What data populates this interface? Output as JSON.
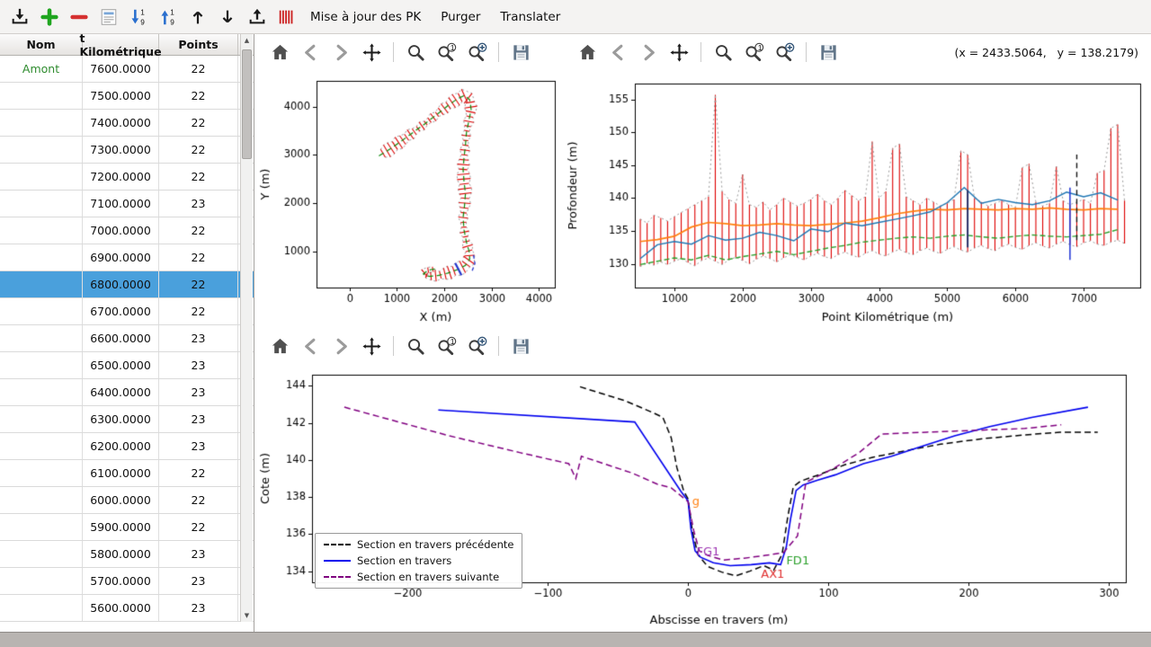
{
  "toolbar": {
    "buttons": [
      "import",
      "add",
      "remove",
      "edit",
      "sort-descending",
      "sort-ascending",
      "move-up",
      "move-down",
      "export",
      "pk-marks"
    ],
    "menus": [
      "Mise à jour des PK",
      "Purger",
      "Translater"
    ]
  },
  "table": {
    "columns": [
      "Nom",
      "t Kilométrique",
      "Points"
    ],
    "selected_index": 8,
    "rows": [
      {
        "nom": "Amont",
        "pk": "7600.0000",
        "points": "22"
      },
      {
        "nom": "",
        "pk": "7500.0000",
        "points": "22"
      },
      {
        "nom": "",
        "pk": "7400.0000",
        "points": "22"
      },
      {
        "nom": "",
        "pk": "7300.0000",
        "points": "22"
      },
      {
        "nom": "",
        "pk": "7200.0000",
        "points": "22"
      },
      {
        "nom": "",
        "pk": "7100.0000",
        "points": "23"
      },
      {
        "nom": "",
        "pk": "7000.0000",
        "points": "22"
      },
      {
        "nom": "",
        "pk": "6900.0000",
        "points": "22"
      },
      {
        "nom": "",
        "pk": "6800.0000",
        "points": "22"
      },
      {
        "nom": "",
        "pk": "6700.0000",
        "points": "22"
      },
      {
        "nom": "",
        "pk": "6600.0000",
        "points": "23"
      },
      {
        "nom": "",
        "pk": "6500.0000",
        "points": "23"
      },
      {
        "nom": "",
        "pk": "6400.0000",
        "points": "23"
      },
      {
        "nom": "",
        "pk": "6300.0000",
        "points": "23"
      },
      {
        "nom": "",
        "pk": "6200.0000",
        "points": "23"
      },
      {
        "nom": "",
        "pk": "6100.0000",
        "points": "22"
      },
      {
        "nom": "",
        "pk": "6000.0000",
        "points": "22"
      },
      {
        "nom": "",
        "pk": "5900.0000",
        "points": "22"
      },
      {
        "nom": "",
        "pk": "5800.0000",
        "points": "23"
      },
      {
        "nom": "",
        "pk": "5700.0000",
        "points": "23"
      },
      {
        "nom": "",
        "pk": "5600.0000",
        "points": "23"
      }
    ]
  },
  "plot_toolbar": {
    "icons": [
      "home",
      "back",
      "forward",
      "pan",
      "|",
      "zoom",
      "zoom-1",
      "zoom-plus",
      "|",
      "save"
    ]
  },
  "readout": "(x = 2433.5064,   y = 138.2179)",
  "colors": {
    "selection": "#4aa0dc",
    "section_red": "#dd0000",
    "highlight_blue": "#2233cc"
  },
  "chart_data": [
    {
      "id": "c-plan",
      "type": "line",
      "xlabel": "X (m)",
      "ylabel": "Y (m)",
      "xlim": [
        -700,
        4340
      ],
      "ylim": [
        260,
        4530
      ],
      "xticks": [
        0,
        1000,
        2000,
        3000,
        4000
      ],
      "yticks": [
        1000,
        2000,
        3000,
        4000
      ],
      "river": {
        "centerline": [
          [
            620,
            2980
          ],
          [
            850,
            3120
          ],
          [
            1100,
            3290
          ],
          [
            1350,
            3470
          ],
          [
            1600,
            3650
          ],
          [
            1850,
            3840
          ],
          [
            2080,
            4020
          ],
          [
            2280,
            4160
          ],
          [
            2430,
            4230
          ],
          [
            2540,
            4140
          ],
          [
            2570,
            3940
          ],
          [
            2520,
            3700
          ],
          [
            2470,
            3450
          ],
          [
            2450,
            3200
          ],
          [
            2420,
            2950
          ],
          [
            2400,
            2700
          ],
          [
            2420,
            2450
          ],
          [
            2450,
            2200
          ],
          [
            2430,
            1950
          ],
          [
            2400,
            1700
          ],
          [
            2420,
            1450
          ],
          [
            2470,
            1200
          ],
          [
            2530,
            1000
          ],
          [
            2540,
            850
          ],
          [
            2450,
            720
          ],
          [
            2280,
            630
          ],
          [
            2080,
            560
          ],
          [
            1870,
            510
          ],
          [
            1680,
            490
          ],
          [
            1560,
            540
          ],
          [
            1660,
            620
          ],
          [
            1830,
            650
          ]
        ],
        "section_spacing": 100,
        "highlight_index": 59,
        "colors": {
          "sections": "#dd0000",
          "centerline": "#0a8a0a",
          "envelope": "#999999",
          "highlight": "#2233cc"
        }
      },
      "series": [
        {
          "name": "selected-section-trace",
          "color": "#2233cc",
          "dash": [
            4,
            3
          ],
          "lw": 1.3,
          "points": [
            [
              2620,
              930
            ],
            [
              2650,
              760
            ],
            [
              2590,
              600
            ]
          ]
        }
      ]
    },
    {
      "id": "c-profile",
      "type": "line",
      "xlabel": "Point Kilométrique (m)",
      "ylabel": "Profondeur (m)",
      "xlim": [
        420,
        7830
      ],
      "ylim": [
        126.4,
        157.4
      ],
      "xticks": [
        1000,
        2000,
        3000,
        4000,
        5000,
        6000,
        7000
      ],
      "yticks": [
        130,
        135,
        140,
        145,
        150,
        155
      ],
      "bars": {
        "x0": 500,
        "step": 100,
        "color": "#dd0000",
        "envelope": "#999999",
        "top": [
          136.8,
          136.2,
          137.4,
          137.0,
          136.5,
          137.2,
          137.8,
          138.4,
          139.0,
          139.6,
          140.2,
          155.7,
          141.0,
          139.8,
          139.2,
          143.6,
          139.0,
          138.6,
          139.4,
          138.2,
          139.0,
          140.0,
          139.4,
          138.8,
          139.2,
          139.8,
          140.6,
          139.6,
          139.0,
          140.0,
          141.2,
          140.4,
          139.6,
          140.2,
          148.6,
          140.0,
          141.0,
          147.6,
          148.2,
          140.2,
          139.6,
          139.0,
          140.0,
          139.4,
          138.8,
          139.2,
          139.8,
          147.2,
          146.6,
          140.0,
          139.4,
          138.8,
          139.2,
          139.6,
          139.0,
          138.6,
          144.6,
          145.2,
          139.4,
          138.8,
          139.2,
          144.8,
          139.6,
          139.0,
          139.4,
          139.8,
          139.2,
          143.8,
          144.2,
          150.6,
          151.2,
          139.6
        ],
        "bottom": [
          129.6,
          130.1,
          129.8,
          130.3,
          129.9,
          130.4,
          130.8,
          130.2,
          129.7,
          130.5,
          130.9,
          130.4,
          129.9,
          130.6,
          131.0,
          130.5,
          130.0,
          130.7,
          131.2,
          130.8,
          130.3,
          130.9,
          131.4,
          131.0,
          130.6,
          131.2,
          131.6,
          131.1,
          130.8,
          131.4,
          131.8,
          131.3,
          131.0,
          131.6,
          132.0,
          131.5,
          131.2,
          131.8,
          132.2,
          131.7,
          131.4,
          132.0,
          132.4,
          131.9,
          131.6,
          132.2,
          132.6,
          132.1,
          131.8,
          132.4,
          132.8,
          132.3,
          132.0,
          132.6,
          133.0,
          132.5,
          132.2,
          132.8,
          133.2,
          132.7,
          132.4,
          133.0,
          133.4,
          132.9,
          132.6,
          133.2,
          133.5,
          133.0,
          132.8,
          133.3,
          133.6,
          133.1
        ]
      },
      "series": [
        {
          "name": "ligne-orange",
          "color": "#ff7f0e",
          "lw": 1.7,
          "x0": 500,
          "step": 250,
          "y": [
            133.4,
            133.7,
            134.2,
            135.6,
            136.3,
            136.1,
            135.8,
            135.9,
            136.1,
            135.9,
            135.8,
            136.0,
            136.2,
            136.5,
            137.0,
            137.6,
            138.0,
            138.3,
            138.2,
            138.4,
            138.3,
            138.2,
            138.4,
            138.3,
            138.5,
            138.3,
            138.2,
            138.4,
            138.3
          ]
        },
        {
          "name": "ligne-bleue",
          "color": "#1f77b4",
          "lw": 1.4,
          "x0": 500,
          "step": 250,
          "y": [
            130.8,
            132.9,
            133.4,
            133.0,
            134.3,
            133.6,
            133.9,
            134.8,
            134.3,
            133.5,
            135.3,
            134.9,
            136.2,
            135.8,
            136.3,
            136.8,
            137.3,
            137.9,
            139.3,
            141.6,
            139.2,
            139.8,
            139.3,
            139.0,
            139.6,
            140.9,
            140.2,
            140.8,
            139.7
          ]
        },
        {
          "name": "ligne-verte",
          "color": "#2ca02c",
          "lw": 1.4,
          "dash": [
            6,
            3
          ],
          "x0": 500,
          "step": 250,
          "y": [
            129.9,
            130.4,
            130.9,
            130.6,
            131.3,
            130.6,
            131.1,
            131.5,
            131.9,
            131.4,
            131.9,
            132.4,
            132.8,
            133.3,
            133.6,
            133.9,
            134.1,
            133.9,
            134.2,
            134.4,
            134.1,
            133.9,
            134.2,
            134.4,
            134.2,
            134.1,
            134.3,
            134.5,
            135.2
          ]
        }
      ],
      "vlines": [
        {
          "x": 5300,
          "y0": 132.5,
          "y1": 141.2,
          "color": "#27336b",
          "lw": 2
        },
        {
          "x": 6800,
          "y0": 130.6,
          "y1": 141.6,
          "color": "#2b3fd6",
          "lw": 1.6
        },
        {
          "x": 6900,
          "y0": 133.6,
          "y1": 146.6,
          "color": "#151515",
          "lw": 1.4,
          "dash": [
            6,
            4
          ]
        }
      ]
    },
    {
      "id": "c-cross",
      "type": "line",
      "xlabel": "Abscisse en travers (m)",
      "ylabel": "Cote (m)",
      "xlim": [
        -268,
        312
      ],
      "ylim": [
        133.4,
        144.6
      ],
      "xticks": [
        -200,
        -100,
        0,
        100,
        200,
        300
      ],
      "yticks": [
        134,
        136,
        138,
        140,
        142,
        144
      ],
      "series": [
        {
          "name": "Section en travers précédente",
          "color": "#000000",
          "dash": [
            7,
            4
          ],
          "lw": 1.5,
          "points": [
            [
              -77,
              143.95
            ],
            [
              -45,
              143.2
            ],
            [
              -25,
              142.55
            ],
            [
              -18,
              142.3
            ],
            [
              -12,
              141.2
            ],
            [
              -8,
              139.6
            ],
            [
              -3,
              138.3
            ],
            [
              0,
              137.9
            ],
            [
              3,
              136.2
            ],
            [
              7,
              134.9
            ],
            [
              14,
              134.25
            ],
            [
              24,
              133.95
            ],
            [
              34,
              133.75
            ],
            [
              44,
              134.0
            ],
            [
              54,
              134.3
            ],
            [
              61,
              134.05
            ],
            [
              67,
              134.9
            ],
            [
              71,
              136.9
            ],
            [
              75,
              138.55
            ],
            [
              80,
              138.85
            ],
            [
              95,
              139.25
            ],
            [
              112,
              139.75
            ],
            [
              132,
              140.15
            ],
            [
              155,
              140.5
            ],
            [
              180,
              140.85
            ],
            [
              210,
              141.15
            ],
            [
              240,
              141.35
            ],
            [
              265,
              141.5
            ],
            [
              292,
              141.5
            ]
          ]
        },
        {
          "name": "Section en travers",
          "color": "#0000ee",
          "lw": 1.6,
          "points": [
            [
              -178,
              142.7
            ],
            [
              -38,
              142.05
            ],
            [
              -5,
              138.3
            ],
            [
              0,
              137.8
            ],
            [
              2,
              136.3
            ],
            [
              5,
              135.1
            ],
            [
              9,
              134.75
            ],
            [
              18,
              134.45
            ],
            [
              30,
              134.3
            ],
            [
              45,
              134.35
            ],
            [
              58,
              134.45
            ],
            [
              66,
              134.35
            ],
            [
              70,
              135.3
            ],
            [
              73,
              136.8
            ],
            [
              77,
              138.35
            ],
            [
              82,
              138.65
            ],
            [
              92,
              138.9
            ],
            [
              105,
              139.2
            ],
            [
              125,
              139.8
            ],
            [
              145,
              140.2
            ],
            [
              165,
              140.7
            ],
            [
              190,
              141.3
            ],
            [
              215,
              141.8
            ],
            [
              245,
              142.3
            ],
            [
              285,
              142.85
            ]
          ]
        },
        {
          "name": "Section en travers suivante",
          "color": "#800080",
          "dash": [
            7,
            4
          ],
          "lw": 1.5,
          "points": [
            [
              -245,
              142.85
            ],
            [
              -170,
              141.3
            ],
            [
              -120,
              140.4
            ],
            [
              -85,
              139.8
            ],
            [
              -80,
              139.0
            ],
            [
              -76,
              140.2
            ],
            [
              -60,
              139.8
            ],
            [
              -40,
              139.3
            ],
            [
              -22,
              138.7
            ],
            [
              -12,
              138.5
            ],
            [
              0,
              137.75
            ],
            [
              4,
              136.2
            ],
            [
              8,
              135.1
            ],
            [
              14,
              134.85
            ],
            [
              25,
              134.6
            ],
            [
              40,
              134.7
            ],
            [
              55,
              134.85
            ],
            [
              68,
              135.0
            ],
            [
              78,
              135.9
            ],
            [
              84,
              138.8
            ],
            [
              92,
              139.1
            ],
            [
              105,
              139.6
            ],
            [
              122,
              140.4
            ],
            [
              138,
              141.4
            ],
            [
              170,
              141.5
            ],
            [
              205,
              141.6
            ],
            [
              240,
              141.7
            ],
            [
              266,
              141.9
            ]
          ]
        }
      ],
      "annotations": [
        {
          "text": "g",
          "x": 3,
          "y": 137.55,
          "color": "#ff7f0e"
        },
        {
          "text": "FG1",
          "x": 6,
          "y": 134.85,
          "color": "#9b30b0"
        },
        {
          "text": "AX1",
          "x": 52,
          "y": 133.62,
          "color": "#e03030"
        },
        {
          "text": "FD1",
          "x": 70,
          "y": 134.35,
          "color": "#2ca02c"
        }
      ]
    }
  ]
}
